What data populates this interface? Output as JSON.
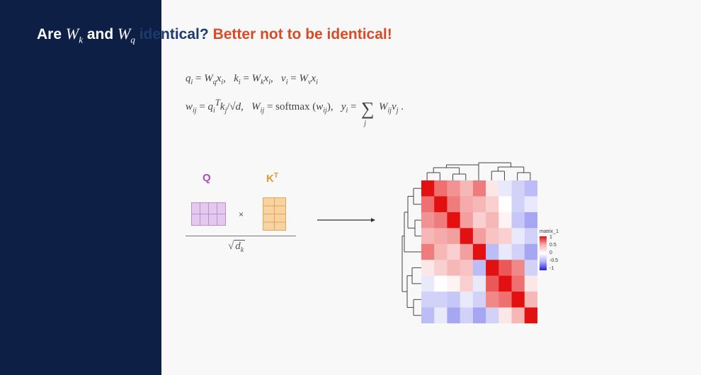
{
  "title": {
    "part1": "Are",
    "w1_base": "W",
    "w1_sub": "k",
    "part2": "and",
    "w2_base": "W",
    "w2_sub": "q",
    "part3": "identical?",
    "part4": "Better not to be identical!"
  },
  "equations": {
    "line1_q": "q",
    "line1_k": "k",
    "line1_v": "v",
    "softmax": "softmax",
    "sum_index": "j"
  },
  "diagram": {
    "q_label": "Q",
    "k_label": "K",
    "k_sup": "T",
    "times": "×",
    "denominator_base": "d",
    "denominator_sub": "k"
  },
  "heatmap": {
    "legend_title": "matrix_1",
    "legend_ticks": [
      "1",
      "0.5",
      "0",
      "-0.5",
      "-1"
    ],
    "matrix": [
      [
        1,
        0.6,
        0.45,
        0.3,
        0.55,
        0.1,
        -0.1,
        -0.2,
        -0.3
      ],
      [
        0.6,
        1,
        0.55,
        0.35,
        0.3,
        0.2,
        0.0,
        -0.2,
        -0.1
      ],
      [
        0.45,
        0.55,
        1,
        0.4,
        0.2,
        0.3,
        0.05,
        -0.25,
        -0.4
      ],
      [
        0.3,
        0.35,
        0.4,
        1,
        0.4,
        0.25,
        0.2,
        -0.1,
        -0.2
      ],
      [
        0.55,
        0.3,
        0.2,
        0.4,
        1,
        -0.3,
        -0.1,
        -0.2,
        -0.4
      ],
      [
        0.1,
        0.2,
        0.3,
        0.25,
        -0.3,
        1,
        0.7,
        0.5,
        -0.2
      ],
      [
        -0.1,
        0.0,
        0.05,
        0.2,
        -0.1,
        0.7,
        1,
        0.6,
        0.1
      ],
      [
        -0.2,
        -0.2,
        -0.25,
        -0.1,
        -0.2,
        0.5,
        0.6,
        1,
        0.3
      ],
      [
        -0.3,
        -0.1,
        -0.4,
        -0.2,
        -0.4,
        -0.2,
        0.1,
        0.3,
        1
      ]
    ],
    "colors": {
      "high": "#e21010",
      "low": "#2020e0"
    }
  },
  "colors": {
    "sidebar": "#0d1f45",
    "title_blue": "#1d3a6e",
    "title_red": "#d74b26",
    "q_color": "#b04bc0",
    "k_color": "#e29a2e"
  }
}
